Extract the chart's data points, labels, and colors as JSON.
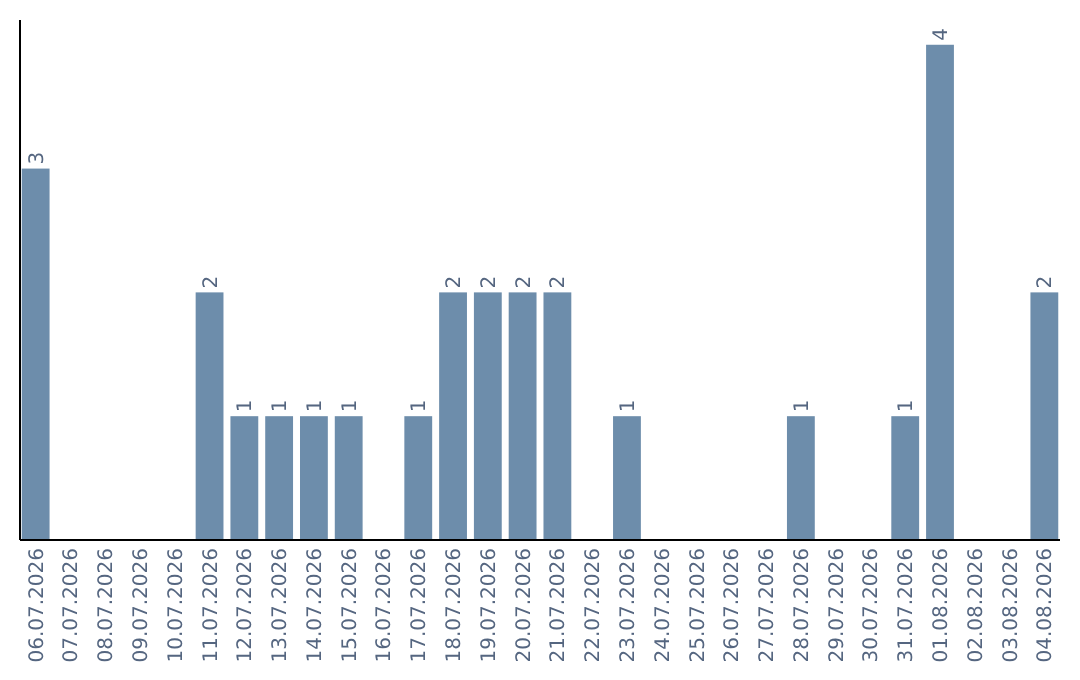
{
  "chart_data": {
    "type": "bar",
    "categories": [
      "06.07.2026",
      "07.07.2026",
      "08.07.2026",
      "09.07.2026",
      "10.07.2026",
      "11.07.2026",
      "12.07.2026",
      "13.07.2026",
      "14.07.2026",
      "15.07.2026",
      "16.07.2026",
      "17.07.2026",
      "18.07.2026",
      "19.07.2026",
      "20.07.2026",
      "21.07.2026",
      "22.07.2026",
      "23.07.2026",
      "24.07.2026",
      "25.07.2026",
      "26.07.2026",
      "27.07.2026",
      "28.07.2026",
      "29.07.2026",
      "30.07.2026",
      "31.07.2026",
      "01.08.2026",
      "02.08.2026",
      "03.08.2026",
      "04.08.2026"
    ],
    "values": [
      3,
      0,
      0,
      0,
      0,
      2,
      1,
      1,
      1,
      1,
      0,
      1,
      2,
      2,
      2,
      2,
      0,
      1,
      0,
      0,
      0,
      0,
      1,
      0,
      0,
      1,
      4,
      0,
      0,
      2
    ],
    "value_labels": [
      "3",
      null,
      null,
      null,
      null,
      "2",
      "1",
      "1",
      "1",
      "1",
      null,
      "1",
      "2",
      "2",
      "2",
      "2",
      null,
      "1",
      null,
      null,
      null,
      null,
      "1",
      null,
      null,
      "1",
      "4",
      null,
      null,
      "2"
    ],
    "color": "#6d8dab",
    "ylim": [
      0,
      4.2
    ],
    "tick_labels": "x"
  }
}
